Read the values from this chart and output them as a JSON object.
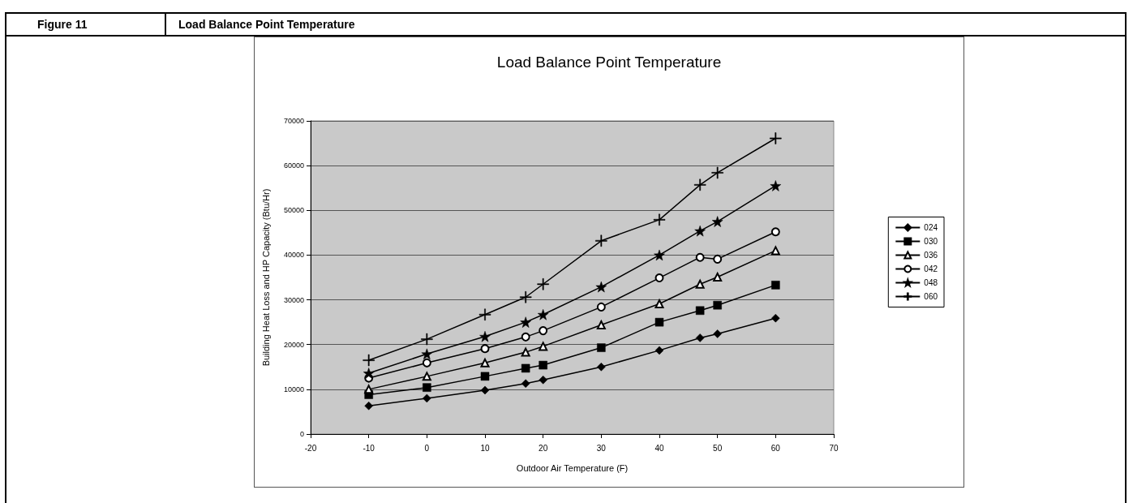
{
  "chart_data": {
    "type": "line",
    "title": "Load Balance Point Temperature",
    "xlabel": "Outdoor Air Temperature (F)",
    "ylabel": "Building Heat Loss and HP Capacity (Btu/Hr)",
    "annotations": [
      "Figure 11",
      "Load Balance Point Temperature"
    ],
    "x": [
      -10,
      0,
      10,
      17,
      20,
      30,
      40,
      47,
      50,
      60
    ],
    "series": [
      {
        "name": "024",
        "color": "#000000",
        "marker": "diamond",
        "values": [
          6300,
          8000,
          9800,
          11300,
          12100,
          15000,
          18700,
          21500,
          22400,
          25900
        ]
      },
      {
        "name": "030",
        "color": "#000000",
        "marker": "square",
        "values": [
          8800,
          10400,
          12900,
          14700,
          15400,
          19300,
          25000,
          27600,
          28800,
          33300
        ]
      },
      {
        "name": "036",
        "color": "#000000",
        "marker": "triangle",
        "values": [
          10000,
          12900,
          15900,
          18300,
          19600,
          24400,
          29100,
          33500,
          35100,
          41000
        ]
      },
      {
        "name": "042",
        "color": "#000000",
        "marker": "circle",
        "values": [
          12500,
          15900,
          19100,
          21700,
          23100,
          28400,
          34900,
          39500,
          39100,
          45200
        ]
      },
      {
        "name": "048",
        "color": "#000000",
        "marker": "star",
        "values": [
          13600,
          17900,
          21800,
          25000,
          26700,
          32900,
          40000,
          45400,
          47500,
          55500
        ]
      },
      {
        "name": "060",
        "color": "#000000",
        "marker": "cross",
        "values": [
          16500,
          21200,
          26700,
          30600,
          33500,
          43200,
          47900,
          55700,
          58400,
          66100
        ]
      }
    ],
    "xlim": [
      -20,
      70
    ],
    "xticks": [
      -20,
      -10,
      0,
      10,
      20,
      30,
      40,
      50,
      60,
      70
    ],
    "ylim": [
      0,
      70000
    ],
    "yticks": [
      0,
      10000,
      20000,
      30000,
      40000,
      50000,
      60000,
      70000
    ],
    "grid": "y",
    "legend": "right",
    "line_style": "solid"
  }
}
